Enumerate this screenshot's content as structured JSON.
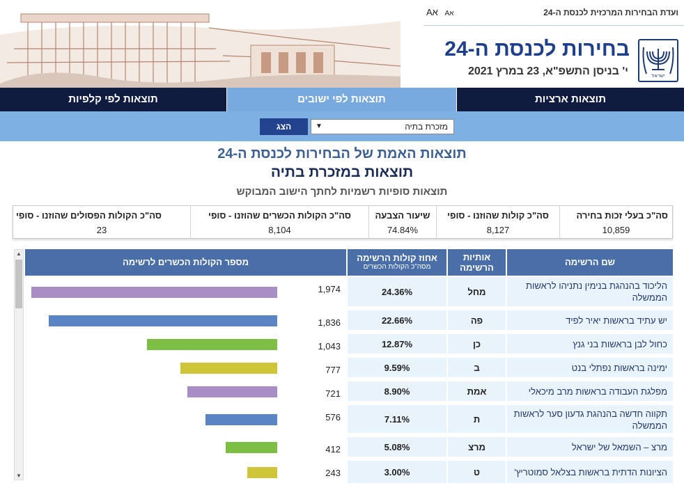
{
  "header": {
    "committee": "ועדת הבחירות המרכזית לכנסת ה-24",
    "font_large": "Aא",
    "font_small": "Aא",
    "title": "בחירות לכנסת ה-24",
    "date": "י' בניסן התשפ\"א, 23 במרץ 2021",
    "emblem_text": "ישראל"
  },
  "tabs": [
    {
      "label": "תוצאות ארציות",
      "active": false
    },
    {
      "label": "תוצאות לפי ישובים",
      "active": true
    },
    {
      "label": "תוצאות לפי קלפיות",
      "active": false
    }
  ],
  "selector": {
    "value": "מזכרת בתיה",
    "button": "הצג"
  },
  "headings": {
    "main": "תוצאות האמת של הבחירות לכנסת ה-24",
    "sub": "תוצאות במזכרת בתיה",
    "note": "תוצאות סופיות רשמיות לחתך הישוב המבוקש"
  },
  "summary": [
    {
      "label": "סה\"כ בעלי זכות בחירה",
      "value": "10,859"
    },
    {
      "label": "סה\"כ קולות שהוזנו - סופי",
      "value": "8,127"
    },
    {
      "label": "שיעור הצבעה",
      "value": "74.84%"
    },
    {
      "label": "סה\"כ הקולות הכשרים שהוזנו - סופי",
      "value": "8,104"
    },
    {
      "label": "סה\"כ הקולות הפסולים שהוזנו - סופי",
      "value": "23"
    }
  ],
  "table": {
    "headers": {
      "name": "שם הרשימה",
      "letters_1": "אותיות",
      "letters_2": "הרשימה",
      "pct_1": "אחוז קולות הרשימה",
      "pct_2": "מסה\"כ הקולות הכשרים",
      "votes": "מספר הקולות הכשרים לרשימה"
    },
    "rows": [
      {
        "name": "הליכוד בהנהגת בנימין נתניהו לראשות הממשלה",
        "letters": "מחל",
        "pct": "24.36%",
        "votes_text": "1,974",
        "votes": 1974,
        "color": "#a98ec6"
      },
      {
        "name": "יש עתיד בראשות יאיר לפיד",
        "letters": "פה",
        "pct": "22.66%",
        "votes_text": "1,836",
        "votes": 1836,
        "color": "#5b84c4"
      },
      {
        "name": "כחול לבן בראשות בני גנץ",
        "letters": "כן",
        "pct": "12.87%",
        "votes_text": "1,043",
        "votes": 1043,
        "color": "#7dbf44"
      },
      {
        "name": "ימינה בראשות נפתלי בנט",
        "letters": "ב",
        "pct": "9.59%",
        "votes_text": "777",
        "votes": 777,
        "color": "#cfc637"
      },
      {
        "name": "מפלגת העבודה בראשות מרב מיכאלי",
        "letters": "אמת",
        "pct": "8.90%",
        "votes_text": "721",
        "votes": 721,
        "color": "#a98ec6"
      },
      {
        "name": "תקווה חדשה בהנהגת גדעון סער לראשות הממשלה",
        "letters": "ת",
        "pct": "7.11%",
        "votes_text": "576",
        "votes": 576,
        "color": "#5b84c4"
      },
      {
        "name": "מרצ – השמאל של ישראל",
        "letters": "מרצ",
        "pct": "5.08%",
        "votes_text": "412",
        "votes": 412,
        "color": "#7dbf44"
      },
      {
        "name": "הציונות הדתית בראשות בצלאל סמוטריץ'",
        "letters": "ט",
        "pct": "3.00%",
        "votes_text": "243",
        "votes": 243,
        "color": "#cfc637"
      }
    ]
  }
}
